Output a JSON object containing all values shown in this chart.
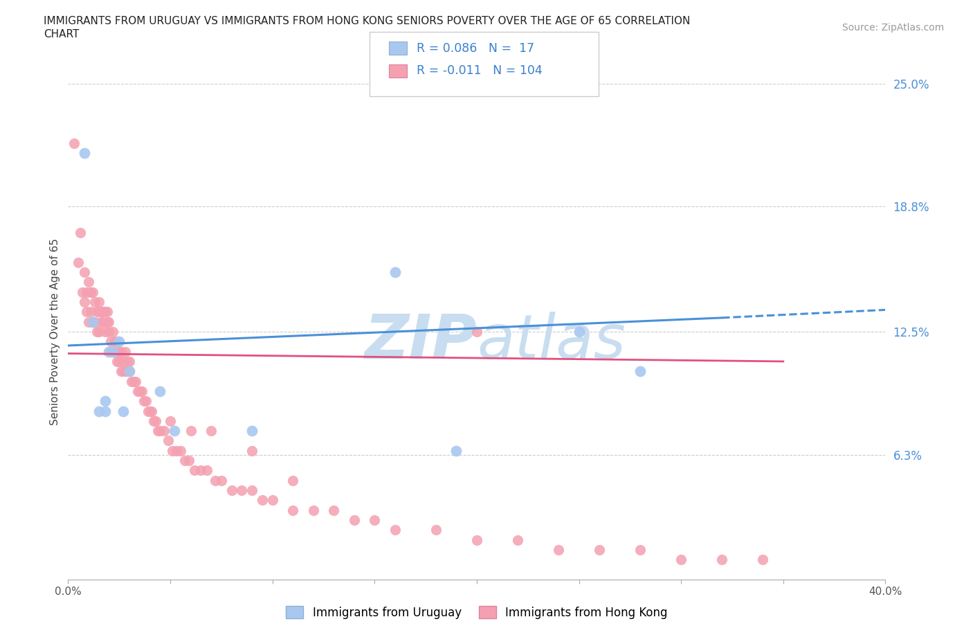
{
  "title_line1": "IMMIGRANTS FROM URUGUAY VS IMMIGRANTS FROM HONG KONG SENIORS POVERTY OVER THE AGE OF 65 CORRELATION",
  "title_line2": "CHART",
  "source_text": "Source: ZipAtlas.com",
  "ylabel": "Seniors Poverty Over the Age of 65",
  "legend1_label": "Immigrants from Uruguay",
  "legend2_label": "Immigrants from Hong Kong",
  "R_uruguay": 0.086,
  "N_uruguay": 17,
  "R_hongkong": -0.011,
  "N_hongkong": 104,
  "xlim": [
    0.0,
    0.4
  ],
  "ylim": [
    0.0,
    0.25
  ],
  "yticks": [
    0.0,
    0.063,
    0.125,
    0.188,
    0.25
  ],
  "ytick_labels": [
    "",
    "6.3%",
    "12.5%",
    "18.8%",
    "25.0%"
  ],
  "xticks": [
    0.0,
    0.05,
    0.1,
    0.15,
    0.2,
    0.25,
    0.3,
    0.35,
    0.4
  ],
  "xtick_labels": [
    "0.0%",
    "",
    "",
    "",
    "",
    "",
    "",
    "",
    "40.0%"
  ],
  "color_uruguay": "#a8c8f0",
  "color_hongkong": "#f4a0b0",
  "trend_color_uruguay": "#4a90d9",
  "trend_color_hongkong": "#e05080",
  "grid_color": "#cccccc",
  "watermark_color": "#c8ddf0",
  "background_color": "#ffffff",
  "uruguay_x": [
    0.008,
    0.012,
    0.015,
    0.018,
    0.018,
    0.02,
    0.022,
    0.025,
    0.027,
    0.03,
    0.045,
    0.052,
    0.16,
    0.25,
    0.28,
    0.19,
    0.09
  ],
  "uruguay_y": [
    0.215,
    0.13,
    0.085,
    0.085,
    0.09,
    0.115,
    0.115,
    0.12,
    0.085,
    0.105,
    0.095,
    0.075,
    0.155,
    0.125,
    0.105,
    0.065,
    0.075
  ],
  "hongkong_x": [
    0.003,
    0.005,
    0.006,
    0.007,
    0.008,
    0.008,
    0.009,
    0.009,
    0.01,
    0.01,
    0.011,
    0.011,
    0.012,
    0.012,
    0.013,
    0.013,
    0.014,
    0.014,
    0.015,
    0.015,
    0.015,
    0.016,
    0.016,
    0.017,
    0.017,
    0.018,
    0.018,
    0.019,
    0.019,
    0.02,
    0.02,
    0.021,
    0.021,
    0.022,
    0.022,
    0.023,
    0.023,
    0.024,
    0.024,
    0.025,
    0.025,
    0.026,
    0.026,
    0.027,
    0.027,
    0.028,
    0.028,
    0.029,
    0.029,
    0.03,
    0.03,
    0.031,
    0.032,
    0.033,
    0.034,
    0.035,
    0.036,
    0.037,
    0.038,
    0.039,
    0.04,
    0.041,
    0.042,
    0.043,
    0.044,
    0.045,
    0.047,
    0.049,
    0.051,
    0.053,
    0.055,
    0.057,
    0.059,
    0.062,
    0.065,
    0.068,
    0.072,
    0.075,
    0.08,
    0.085,
    0.09,
    0.095,
    0.1,
    0.11,
    0.12,
    0.13,
    0.14,
    0.15,
    0.16,
    0.18,
    0.2,
    0.22,
    0.24,
    0.26,
    0.28,
    0.3,
    0.32,
    0.34,
    0.2,
    0.05,
    0.06,
    0.07,
    0.09,
    0.11
  ],
  "hongkong_y": [
    0.22,
    0.16,
    0.175,
    0.145,
    0.155,
    0.14,
    0.145,
    0.135,
    0.15,
    0.13,
    0.145,
    0.135,
    0.145,
    0.13,
    0.14,
    0.13,
    0.135,
    0.125,
    0.14,
    0.135,
    0.125,
    0.135,
    0.13,
    0.135,
    0.13,
    0.135,
    0.125,
    0.135,
    0.13,
    0.13,
    0.125,
    0.12,
    0.115,
    0.125,
    0.115,
    0.12,
    0.115,
    0.12,
    0.11,
    0.115,
    0.11,
    0.115,
    0.105,
    0.11,
    0.105,
    0.115,
    0.105,
    0.11,
    0.105,
    0.11,
    0.105,
    0.1,
    0.1,
    0.1,
    0.095,
    0.095,
    0.095,
    0.09,
    0.09,
    0.085,
    0.085,
    0.085,
    0.08,
    0.08,
    0.075,
    0.075,
    0.075,
    0.07,
    0.065,
    0.065,
    0.065,
    0.06,
    0.06,
    0.055,
    0.055,
    0.055,
    0.05,
    0.05,
    0.045,
    0.045,
    0.045,
    0.04,
    0.04,
    0.035,
    0.035,
    0.035,
    0.03,
    0.03,
    0.025,
    0.025,
    0.02,
    0.02,
    0.015,
    0.015,
    0.015,
    0.01,
    0.01,
    0.01,
    0.125,
    0.08,
    0.075,
    0.075,
    0.065,
    0.05
  ],
  "trend_u_x0": 0.0,
  "trend_u_x1": 0.32,
  "trend_u_y0": 0.118,
  "trend_u_y1": 0.132,
  "trend_u_dash_x0": 0.32,
  "trend_u_dash_x1": 0.4,
  "trend_u_dash_y0": 0.132,
  "trend_u_dash_y1": 0.136,
  "trend_hk_x0": 0.0,
  "trend_hk_x1": 0.35,
  "trend_hk_y0": 0.114,
  "trend_hk_y1": 0.11
}
